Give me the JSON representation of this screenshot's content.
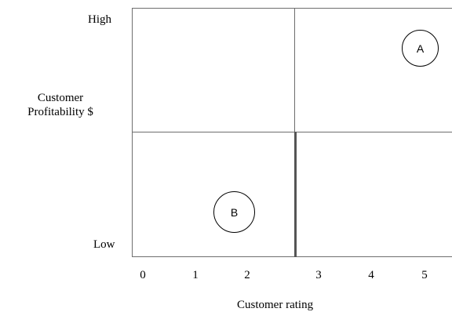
{
  "diagram": {
    "y_axis": {
      "title_line1": "Customer",
      "title_line2": "Profitability $",
      "high": "High",
      "low": "Low"
    },
    "x_axis": {
      "title": "Customer rating",
      "ticks": [
        "0",
        "1",
        "2",
        "3",
        "4",
        "5"
      ]
    },
    "points": [
      {
        "label": "A"
      },
      {
        "label": "B"
      }
    ]
  }
}
